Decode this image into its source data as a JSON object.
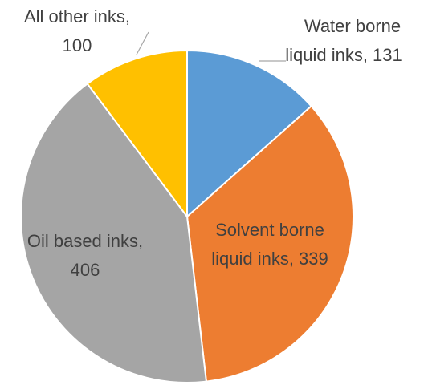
{
  "chart_data": {
    "type": "pie",
    "slices": [
      {
        "label_line1": "Water borne",
        "label_line2": "liquid inks, 131",
        "value": 131,
        "color": "#5B9BD5"
      },
      {
        "label_line1": "Solvent borne",
        "label_line2": "liquid inks, 339",
        "value": 339,
        "color": "#ED7D31"
      },
      {
        "label_line1": "Oil based inks,",
        "label_line2": "406",
        "value": 406,
        "color": "#A5A5A5"
      },
      {
        "label_line1": "All other inks,",
        "label_line2": "100",
        "value": 100,
        "color": "#FFC000"
      }
    ],
    "start_angle": "12 o'clock",
    "direction": "clockwise",
    "legend": "none"
  }
}
